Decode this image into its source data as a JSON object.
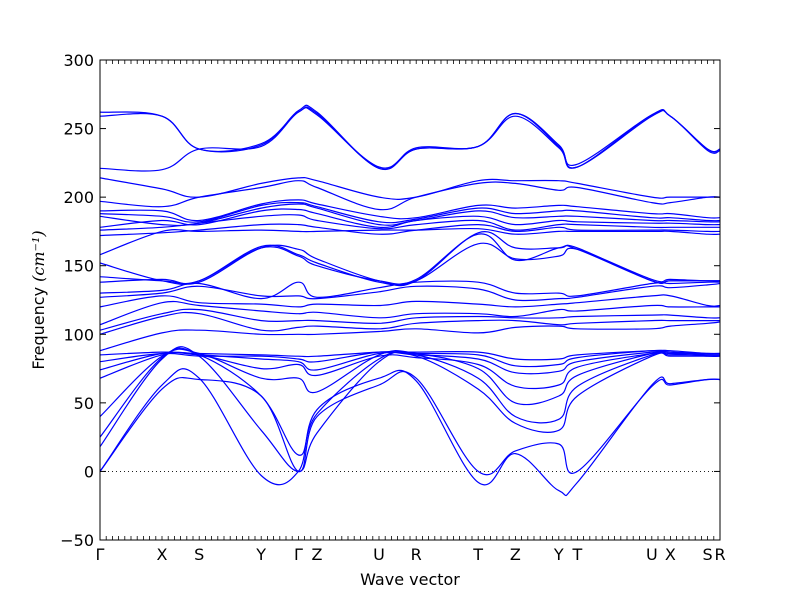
{
  "chart_data": {
    "type": "line",
    "xlabel": "Wave vector",
    "ylabel": "Frequency ",
    "ylabel_unit": "(cm⁻¹)",
    "ylim": [
      -50,
      300
    ],
    "yticks": [
      -50,
      0,
      50,
      100,
      150,
      200,
      250,
      300
    ],
    "zero_line": true,
    "grid": false,
    "line_color": "#0000ff",
    "x_ticks": [
      {
        "label": "Γ",
        "x": 0.0
      },
      {
        "label": "X",
        "x": 1.0
      },
      {
        "label": "S",
        "x": 1.6
      },
      {
        "label": "Y",
        "x": 2.6
      },
      {
        "label": "Γ",
        "x": 3.2
      },
      {
        "label": "Z",
        "x": 3.5
      },
      {
        "label": "U",
        "x": 4.5
      },
      {
        "label": "R",
        "x": 5.1
      },
      {
        "label": "T",
        "x": 6.1
      },
      {
        "label": "Z",
        "x": 6.7
      },
      {
        "label": "Y",
        "x": 7.4
      },
      {
        "label": "T",
        "x": 7.7
      },
      {
        "label": "U",
        "x": 8.9
      },
      {
        "label": "X",
        "x": 9.2
      },
      {
        "label": "S",
        "x": 9.8
      },
      {
        "label": "R",
        "x": 10.0
      }
    ],
    "xlim": [
      0.0,
      10.0
    ],
    "band_x": [
      0.0,
      1.0,
      1.6,
      2.6,
      3.2,
      3.5,
      4.5,
      5.1,
      6.1,
      6.7,
      7.4,
      7.7,
      8.9,
      9.2,
      9.8,
      10.0
    ],
    "bands": [
      [
        0,
        60,
        67,
        55,
        0,
        40,
        63,
        68,
        0,
        15,
        20,
        0,
        62,
        63,
        67,
        67
      ],
      [
        0,
        63,
        68,
        -3,
        0,
        45,
        68,
        66,
        -8,
        13,
        -14,
        -8,
        63,
        64,
        67,
        67
      ],
      [
        18,
        82,
        84,
        30,
        0,
        28,
        80,
        84,
        60,
        35,
        30,
        55,
        84,
        84,
        84,
        84
      ],
      [
        25,
        83,
        85,
        55,
        12,
        42,
        82,
        85,
        68,
        40,
        38,
        62,
        85,
        85,
        85,
        85
      ],
      [
        40,
        84,
        86,
        68,
        68,
        58,
        85,
        86,
        75,
        50,
        55,
        70,
        86,
        86,
        86,
        86
      ],
      [
        68,
        85,
        85,
        75,
        78,
        70,
        84,
        83,
        78,
        62,
        63,
        76,
        86,
        86,
        84,
        84
      ],
      [
        74,
        86,
        85,
        82,
        80,
        74,
        86,
        85,
        82,
        72,
        73,
        80,
        87,
        87,
        85,
        85
      ],
      [
        80,
        86,
        84,
        84,
        82,
        80,
        87,
        86,
        85,
        77,
        78,
        83,
        88,
        87,
        86,
        86
      ],
      [
        85,
        87,
        86,
        85,
        84,
        84,
        87,
        87,
        87,
        82,
        82,
        85,
        88,
        88,
        86,
        86
      ],
      [
        88,
        101,
        103,
        100,
        100,
        100,
        102,
        104,
        101,
        105,
        106,
        104,
        104,
        106,
        108,
        109
      ],
      [
        100,
        113,
        115,
        103,
        105,
        106,
        104,
        108,
        110,
        110,
        107,
        108,
        110,
        110,
        110,
        110
      ],
      [
        103,
        115,
        118,
        110,
        110,
        110,
        108,
        112,
        113,
        112,
        112,
        113,
        114,
        114,
        112,
        112
      ],
      [
        107,
        123,
        121,
        117,
        115,
        116,
        112,
        115,
        115,
        113,
        118,
        117,
        121,
        120,
        120,
        120
      ],
      [
        120,
        128,
        123,
        122,
        120,
        122,
        121,
        124,
        122,
        120,
        122,
        123,
        128,
        128,
        121,
        121
      ],
      [
        127,
        130,
        135,
        128,
        128,
        126,
        131,
        135,
        133,
        125,
        126,
        127,
        135,
        134,
        136,
        137
      ],
      [
        130,
        132,
        137,
        126,
        138,
        127,
        134,
        138,
        138,
        130,
        130,
        128,
        137,
        137,
        138,
        138
      ],
      [
        138,
        140,
        138,
        163,
        162,
        155,
        139,
        139,
        174,
        163,
        163,
        163,
        139,
        139,
        139,
        139
      ],
      [
        142,
        139,
        139,
        163,
        157,
        150,
        139,
        140,
        173,
        154,
        163,
        162,
        139,
        139,
        139,
        139
      ],
      [
        152,
        139,
        139,
        164,
        158,
        152,
        138,
        139,
        166,
        155,
        157,
        162,
        140,
        140,
        139,
        139
      ],
      [
        158,
        175,
        175,
        176,
        175,
        175,
        176,
        176,
        177,
        173,
        175,
        175,
        175,
        175,
        173,
        173
      ],
      [
        172,
        174,
        176,
        180,
        180,
        178,
        173,
        176,
        180,
        175,
        178,
        176,
        176,
        176,
        175,
        175
      ],
      [
        176,
        178,
        181,
        186,
        187,
        183,
        177,
        180,
        183,
        176,
        180,
        180,
        178,
        178,
        178,
        178
      ],
      [
        178,
        183,
        180,
        190,
        191,
        188,
        178,
        183,
        186,
        180,
        183,
        182,
        181,
        181,
        180,
        180
      ],
      [
        186,
        180,
        181,
        192,
        195,
        192,
        180,
        183,
        190,
        185,
        186,
        186,
        183,
        183,
        182,
        182
      ],
      [
        188,
        186,
        182,
        194,
        196,
        193,
        182,
        184,
        192,
        188,
        190,
        190,
        185,
        185,
        183,
        183
      ],
      [
        190,
        190,
        183,
        195,
        198,
        195,
        186,
        185,
        194,
        192,
        194,
        193,
        188,
        188,
        185,
        185
      ],
      [
        197,
        193,
        200,
        207,
        212,
        207,
        191,
        200,
        210,
        210,
        205,
        207,
        196,
        196,
        200,
        200
      ],
      [
        214,
        206,
        200,
        210,
        214,
        212,
        200,
        200,
        212,
        212,
        212,
        210,
        200,
        200,
        200,
        200
      ],
      [
        221,
        220,
        235,
        237,
        262,
        260,
        222,
        235,
        237,
        259,
        236,
        222,
        260,
        259,
        235,
        235
      ],
      [
        259,
        259,
        235,
        239,
        262,
        261,
        221,
        235,
        237,
        261,
        238,
        222,
        259,
        259,
        234,
        234
      ],
      [
        262,
        259,
        235,
        238,
        263,
        262,
        221,
        236,
        237,
        261,
        237,
        224,
        260,
        259,
        235,
        235
      ]
    ]
  }
}
